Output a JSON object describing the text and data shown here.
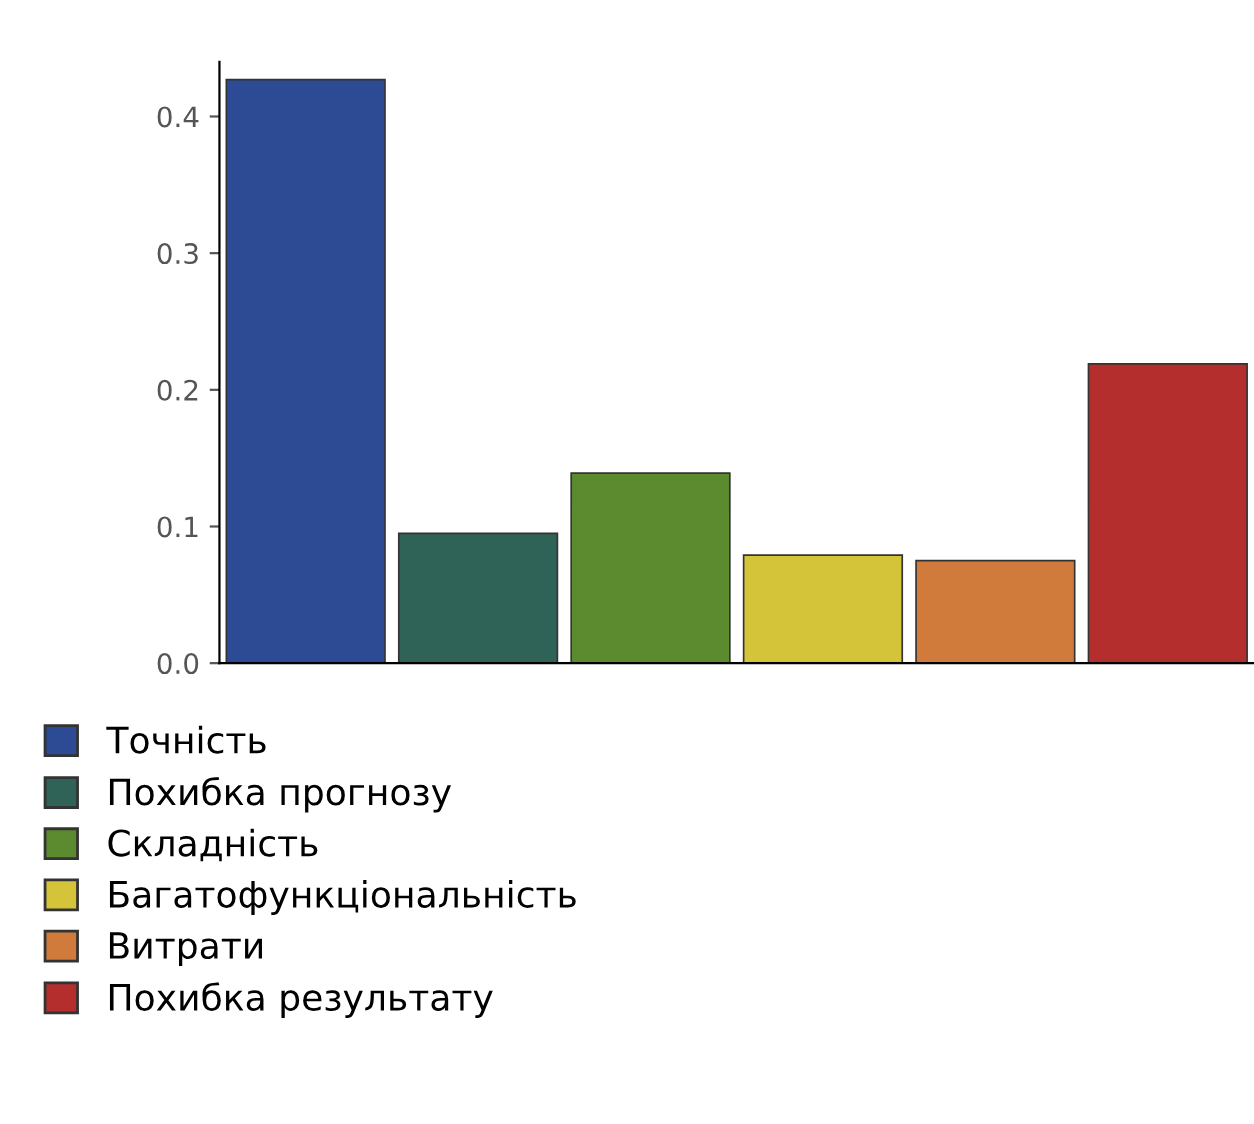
{
  "chart_data": {
    "type": "bar",
    "categories": [
      null
    ],
    "series": [
      {
        "name": "Точність",
        "color": "#2d4b94",
        "values": [
          0.427
        ]
      },
      {
        "name": "Похибка прогнозу",
        "color": "#2f6357",
        "values": [
          0.095
        ]
      },
      {
        "name": "Складність",
        "color": "#5b8a2f",
        "values": [
          0.139
        ]
      },
      {
        "name": "Багатофункціональність",
        "color": "#d4c43a",
        "values": [
          0.079
        ]
      },
      {
        "name": "Витрати",
        "color": "#d07a3c",
        "values": [
          0.075
        ]
      },
      {
        "name": "Похибка результату",
        "color": "#b42e2e",
        "values": [
          0.219
        ]
      }
    ],
    "ylim": [
      0,
      0.44
    ],
    "yticks": [
      {
        "value": 0,
        "label": "0.0"
      },
      0.1,
      0.2,
      0.3,
      0.4
    ],
    "grid": false,
    "legend": "bottom left"
  }
}
